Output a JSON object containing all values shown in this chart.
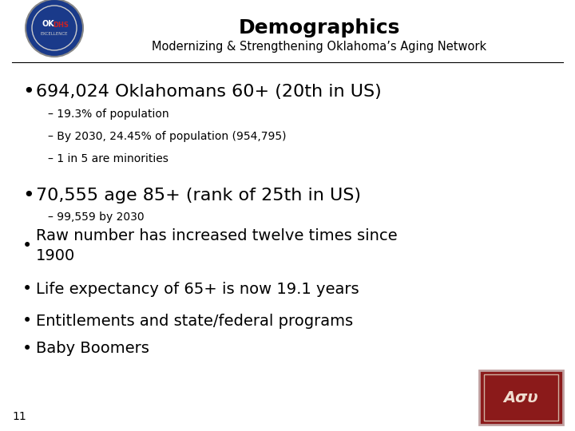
{
  "title": "Demographics",
  "subtitle": "Modernizing & Strengthening Oklahoma’s Aging Network",
  "background_color": "#ffffff",
  "title_color": "#000000",
  "subtitle_color": "#000000",
  "text_color": "#000000",
  "title_fontsize": 18,
  "subtitle_fontsize": 10.5,
  "bullet1_text": "694,024 Oklahomans 60+ (20th in US)",
  "bullet1_fontsize": 16,
  "sub1_items": [
    "– 19.3% of population",
    "– By 2030, 24.45% of population (954,795)",
    "– 1 in 5 are minorities"
  ],
  "sub1_fontsize": 10,
  "bullet2_text": "70,555 age 85+ (rank of 25th in US)",
  "bullet2_fontsize": 16,
  "sub2_items": [
    "– 99,559 by 2030"
  ],
  "sub2_fontsize": 10,
  "bullets_large": [
    "Raw number has increased twelve times since\n1900",
    "Life expectancy of 65+ is now 19.1 years",
    "Entitlements and state/federal programs",
    "Baby Boomers"
  ],
  "bullets_large_fontsize": 14,
  "page_number": "11",
  "page_number_fontsize": 10,
  "header_line_color": "#000000",
  "asu_logo_color": "#8B1A1A",
  "asu_logo_border": "#c0a0a0"
}
